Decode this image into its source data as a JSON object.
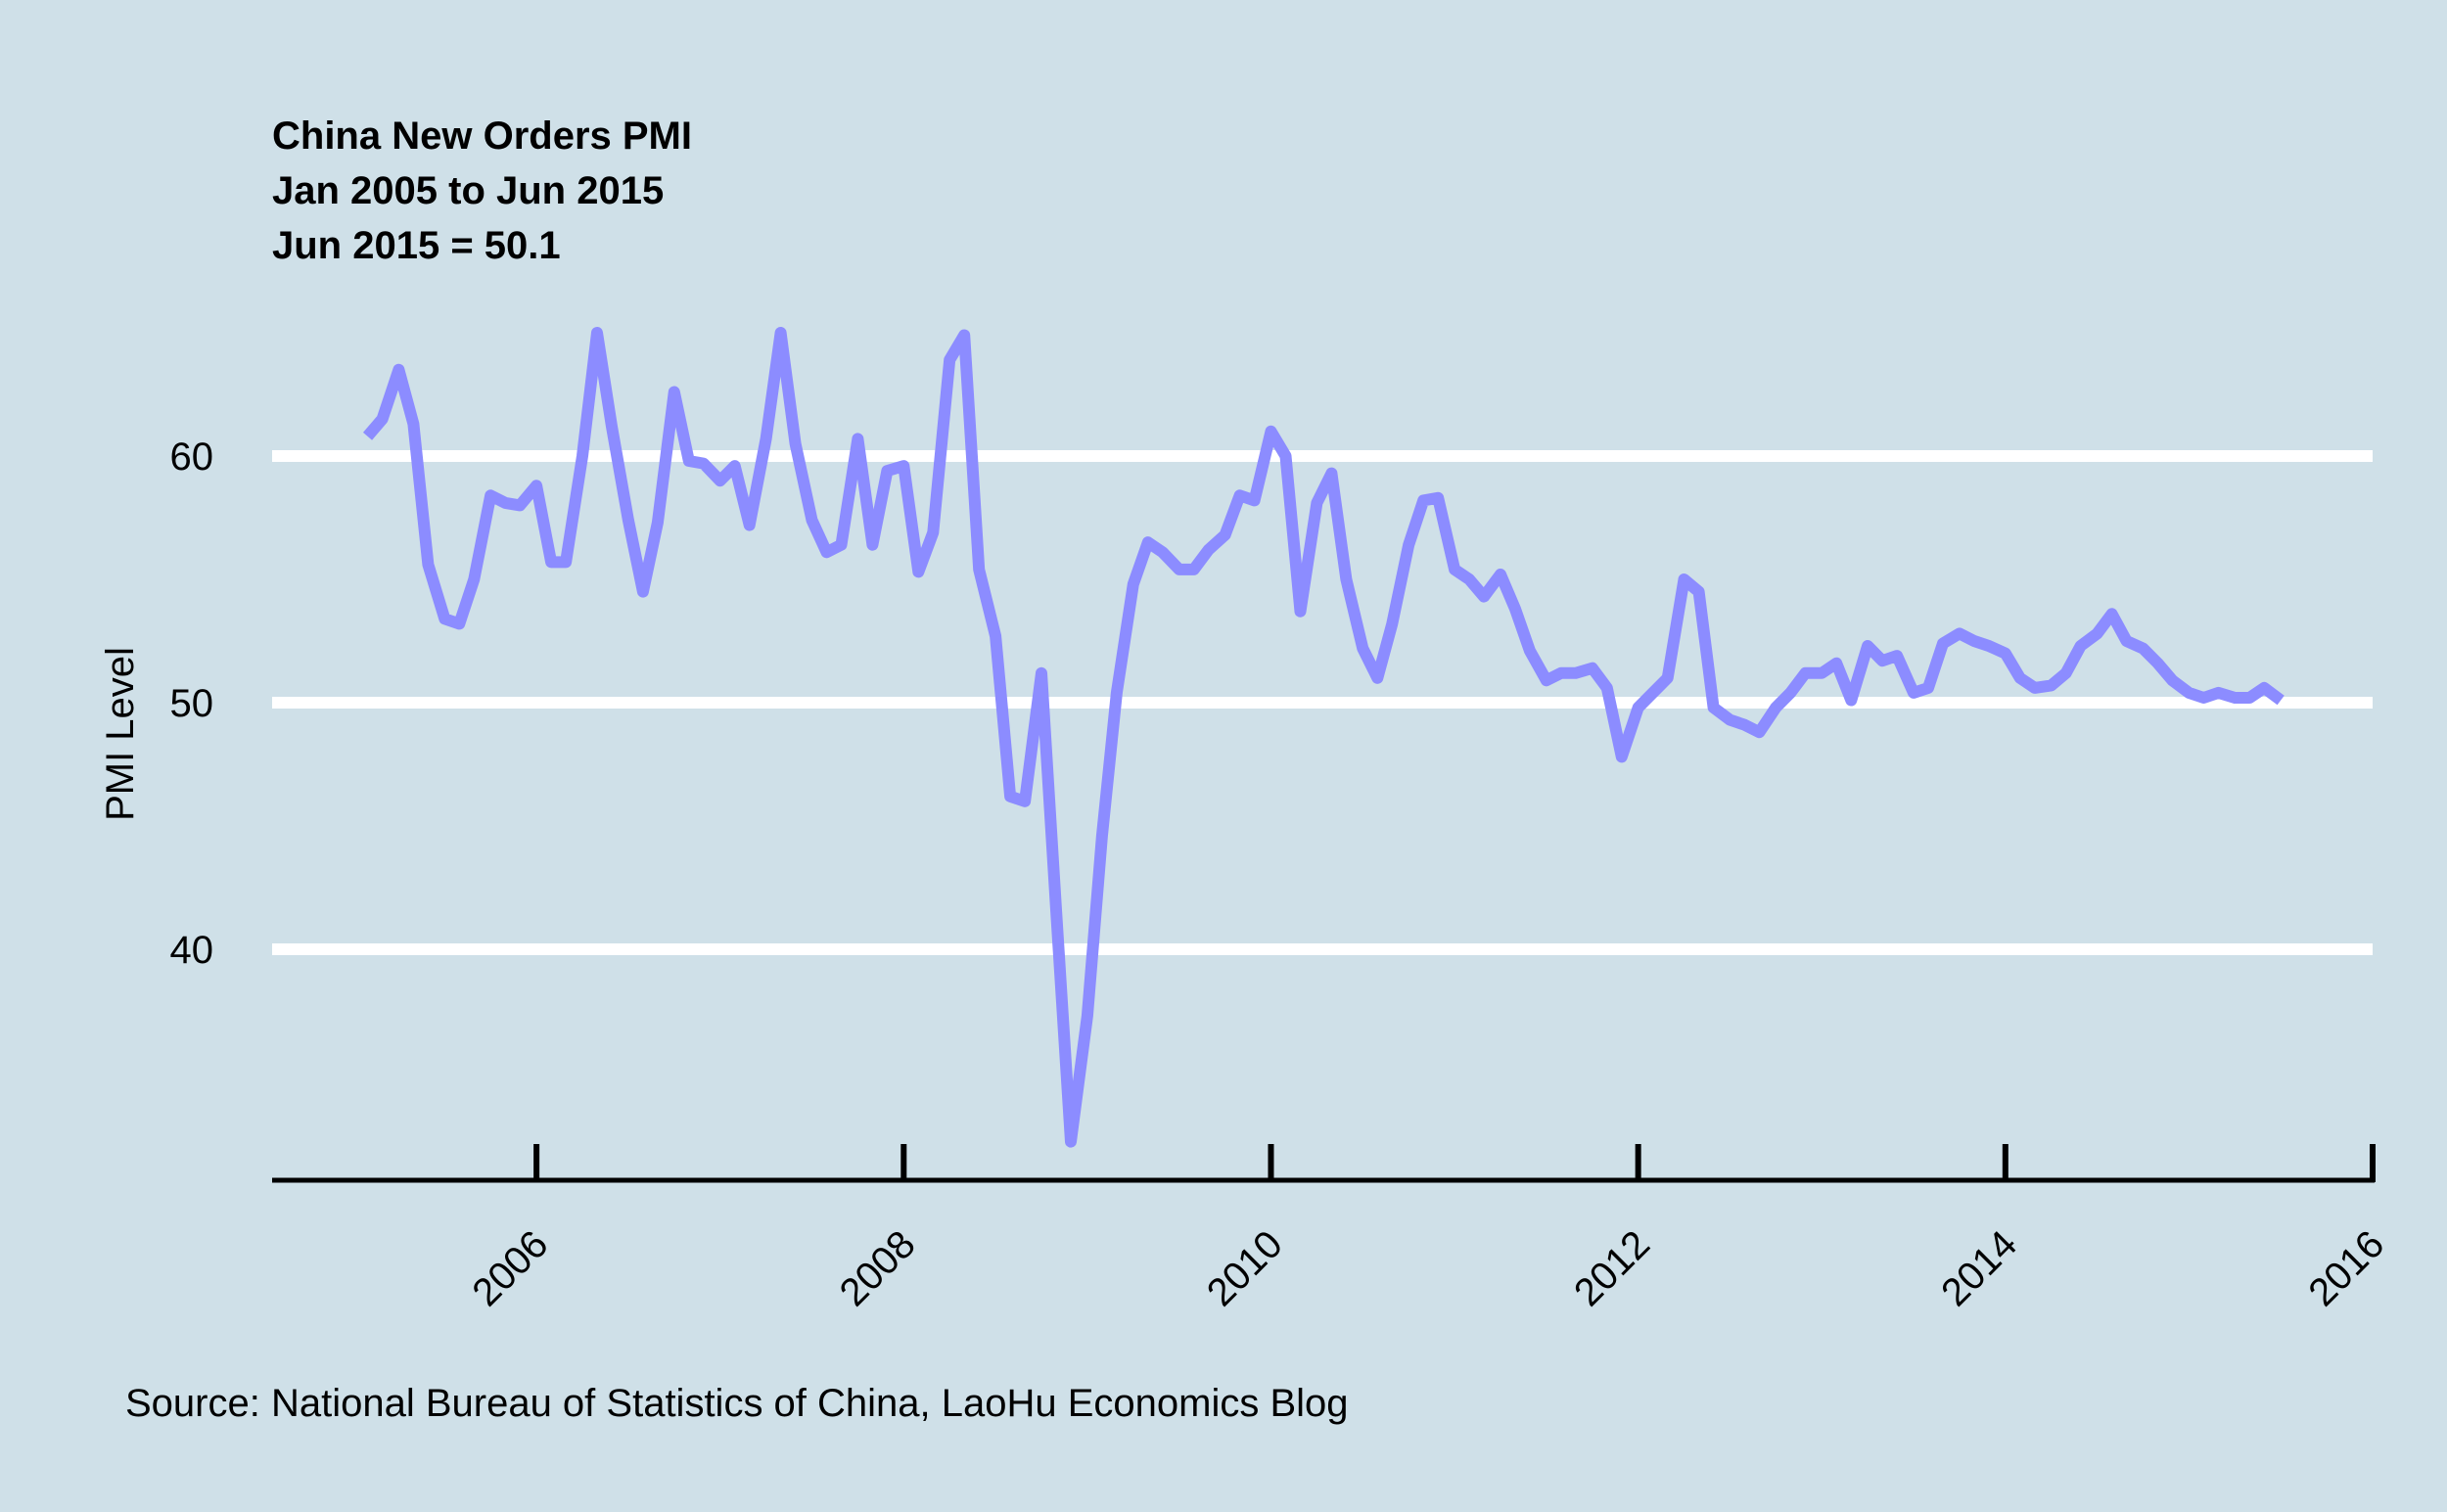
{
  "chart_data": {
    "type": "line",
    "title_lines": [
      "China New Orders PMI",
      "Jan 2005 to Jun 2015",
      "Jun 2015 = 50.1"
    ],
    "xlabel": "",
    "ylabel": "PMI Level",
    "source": "Source: National Bureau of Statistics of China, LaoHu Economics Blog",
    "xlim": [
      2004.56,
      2016.0
    ],
    "ylim": [
      31,
      65
    ],
    "x_ticks": [
      2006,
      2008,
      2010,
      2012,
      2014,
      2016
    ],
    "x_tick_labels": [
      "2006",
      "2008",
      "2010",
      "2012",
      "2014",
      "2016"
    ],
    "y_ticks": [
      40,
      50,
      60
    ],
    "y_tick_labels": [
      "40",
      "50",
      "60"
    ],
    "grid": "horizontal",
    "line_color": "#8c8cff",
    "gridline_color": "#ffffff",
    "background": "#cfe0e8",
    "series": [
      {
        "values": [
          [
            2005.08,
            60.8
          ],
          [
            2005.16,
            61.5
          ],
          [
            2005.25,
            63.5
          ],
          [
            2005.33,
            61.3
          ],
          [
            2005.41,
            55.6
          ],
          [
            2005.5,
            53.4
          ],
          [
            2005.58,
            53.2
          ],
          [
            2005.66,
            55.0
          ],
          [
            2005.75,
            58.4
          ],
          [
            2005.83,
            58.1
          ],
          [
            2005.91,
            58.0
          ],
          [
            2006.0,
            58.8
          ],
          [
            2006.08,
            55.7
          ],
          [
            2006.16,
            55.7
          ],
          [
            2006.25,
            60.0
          ],
          [
            2006.33,
            65.0
          ],
          [
            2006.41,
            61.2
          ],
          [
            2006.5,
            57.4
          ],
          [
            2006.58,
            54.5
          ],
          [
            2006.66,
            57.3
          ],
          [
            2006.75,
            62.6
          ],
          [
            2006.83,
            59.8
          ],
          [
            2006.91,
            59.7
          ],
          [
            2007.0,
            59.0
          ],
          [
            2007.08,
            59.6
          ],
          [
            2007.16,
            57.2
          ],
          [
            2007.25,
            60.7
          ],
          [
            2007.33,
            65.0
          ],
          [
            2007.41,
            60.5
          ],
          [
            2007.5,
            57.4
          ],
          [
            2007.58,
            56.1
          ],
          [
            2007.66,
            56.4
          ],
          [
            2007.75,
            60.7
          ],
          [
            2007.83,
            56.4
          ],
          [
            2007.91,
            59.4
          ],
          [
            2008.0,
            59.6
          ],
          [
            2008.08,
            55.3
          ],
          [
            2008.16,
            56.9
          ],
          [
            2008.25,
            63.9
          ],
          [
            2008.33,
            64.9
          ],
          [
            2008.41,
            55.4
          ],
          [
            2008.5,
            52.7
          ],
          [
            2008.58,
            46.2
          ],
          [
            2008.66,
            46.0
          ],
          [
            2008.75,
            51.2
          ],
          [
            2008.83,
            41.6
          ],
          [
            2008.91,
            32.2
          ],
          [
            2009.0,
            37.3
          ],
          [
            2009.08,
            44.6
          ],
          [
            2009.16,
            50.4
          ],
          [
            2009.25,
            54.8
          ],
          [
            2009.33,
            56.5
          ],
          [
            2009.41,
            56.1
          ],
          [
            2009.5,
            55.4
          ],
          [
            2009.58,
            55.4
          ],
          [
            2009.66,
            56.2
          ],
          [
            2009.75,
            56.8
          ],
          [
            2009.83,
            58.4
          ],
          [
            2009.91,
            58.2
          ],
          [
            2010.0,
            61.0
          ],
          [
            2010.08,
            60.0
          ],
          [
            2010.16,
            53.7
          ],
          [
            2010.25,
            58.1
          ],
          [
            2010.33,
            59.3
          ],
          [
            2010.41,
            55.0
          ],
          [
            2010.5,
            52.2
          ],
          [
            2010.58,
            51.0
          ],
          [
            2010.66,
            53.2
          ],
          [
            2010.75,
            56.4
          ],
          [
            2010.83,
            58.2
          ],
          [
            2010.91,
            58.3
          ],
          [
            2011.0,
            55.4
          ],
          [
            2011.08,
            55.0
          ],
          [
            2011.16,
            54.3
          ],
          [
            2011.25,
            55.2
          ],
          [
            2011.33,
            53.8
          ],
          [
            2011.41,
            52.1
          ],
          [
            2011.5,
            50.9
          ],
          [
            2011.58,
            51.2
          ],
          [
            2011.66,
            51.2
          ],
          [
            2011.75,
            51.4
          ],
          [
            2011.83,
            50.6
          ],
          [
            2011.91,
            47.8
          ],
          [
            2012.0,
            49.8
          ],
          [
            2012.08,
            50.4
          ],
          [
            2012.16,
            51.0
          ],
          [
            2012.25,
            55.0
          ],
          [
            2012.33,
            54.5
          ],
          [
            2012.41,
            49.8
          ],
          [
            2012.5,
            49.3
          ],
          [
            2012.58,
            49.1
          ],
          [
            2012.66,
            48.8
          ],
          [
            2012.75,
            49.8
          ],
          [
            2012.83,
            50.4
          ],
          [
            2012.91,
            51.2
          ],
          [
            2013.0,
            51.2
          ],
          [
            2013.08,
            51.6
          ],
          [
            2013.16,
            50.1
          ],
          [
            2013.25,
            52.3
          ],
          [
            2013.33,
            51.7
          ],
          [
            2013.41,
            51.9
          ],
          [
            2013.5,
            50.4
          ],
          [
            2013.58,
            50.6
          ],
          [
            2013.66,
            52.4
          ],
          [
            2013.75,
            52.8
          ],
          [
            2013.83,
            52.5
          ],
          [
            2013.91,
            52.3
          ],
          [
            2014.0,
            52.0
          ],
          [
            2014.08,
            51.0
          ],
          [
            2014.16,
            50.6
          ],
          [
            2014.25,
            50.7
          ],
          [
            2014.33,
            51.2
          ],
          [
            2014.41,
            52.3
          ],
          [
            2014.5,
            52.8
          ],
          [
            2014.58,
            53.6
          ],
          [
            2014.66,
            52.5
          ],
          [
            2014.75,
            52.2
          ],
          [
            2014.83,
            51.6
          ],
          [
            2014.91,
            50.9
          ],
          [
            2015.0,
            50.4
          ],
          [
            2015.08,
            50.2
          ],
          [
            2015.16,
            50.4
          ],
          [
            2015.25,
            50.2
          ],
          [
            2015.33,
            50.2
          ],
          [
            2015.41,
            50.6
          ],
          [
            2015.5,
            50.1
          ]
        ]
      }
    ]
  }
}
